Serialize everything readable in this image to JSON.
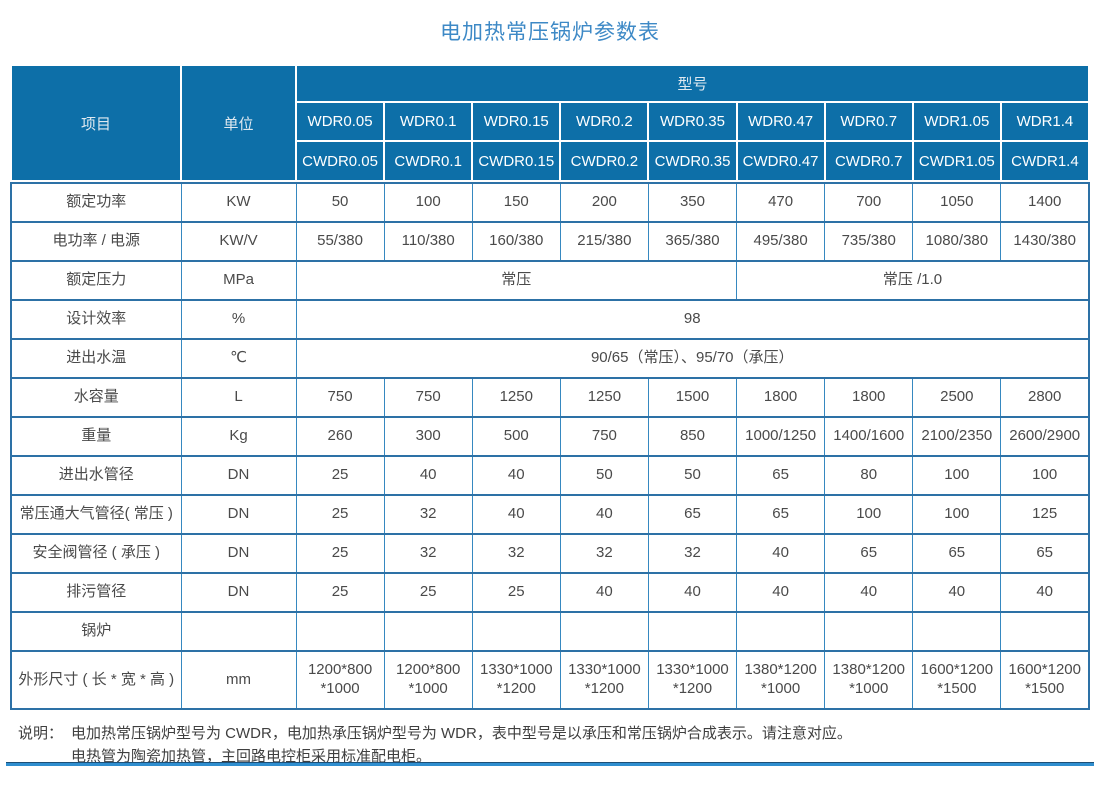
{
  "title": "电加热常压锅炉参数表",
  "colors": {
    "header_bg": "#0d6fa8",
    "title": "#3d89c6",
    "border_h": "#2d71a6",
    "border_v": "#3688c0",
    "body_text": "#4a4a4a"
  },
  "table": {
    "corner_label": "项目",
    "unit_label": "单位",
    "model_group_label": "型号",
    "model_rows": [
      [
        "WDR0.05",
        "WDR0.1",
        "WDR0.15",
        "WDR0.2",
        "WDR0.35",
        "WDR0.47",
        "WDR0.7",
        "WDR1.05",
        "WDR1.4"
      ],
      [
        "CWDR0.05",
        "CWDR0.1",
        "CWDR0.15",
        "CWDR0.2",
        "CWDR0.35",
        "CWDR0.47",
        "CWDR0.7",
        "CWDR1.05",
        "CWDR1.4"
      ]
    ],
    "rows": [
      {
        "item": "额定功率",
        "unit": "KW",
        "values": [
          "50",
          "100",
          "150",
          "200",
          "350",
          "470",
          "700",
          "1050",
          "1400"
        ]
      },
      {
        "item": "电功率 / 电源",
        "unit": "KW/V",
        "values": [
          "55/380",
          "110/380",
          "160/380",
          "215/380",
          "365/380",
          "495/380",
          "735/380",
          "1080/380",
          "1430/380"
        ]
      },
      {
        "item": "额定压力",
        "unit": "MPa",
        "spans": [
          {
            "text": "常压",
            "cols": 5
          },
          {
            "text": "常压 /1.0",
            "cols": 4
          }
        ]
      },
      {
        "item": "设计效率",
        "unit": "%",
        "spans": [
          {
            "text": "98",
            "cols": 9
          }
        ]
      },
      {
        "item": "进出水温",
        "unit": "℃",
        "spans": [
          {
            "text": "90/65（常压）、95/70（承压）",
            "cols": 9
          }
        ]
      },
      {
        "item": "水容量",
        "unit": "L",
        "values": [
          "750",
          "750",
          "1250",
          "1250",
          "1500",
          "1800",
          "1800",
          "2500",
          "2800"
        ]
      },
      {
        "item": "重量",
        "unit": "Kg",
        "values": [
          "260",
          "300",
          "500",
          "750",
          "850",
          "1000/1250",
          "1400/1600",
          "2100/2350",
          "2600/2900"
        ]
      },
      {
        "item": "进出水管径",
        "unit": "DN",
        "values": [
          "25",
          "40",
          "40",
          "50",
          "50",
          "65",
          "80",
          "100",
          "100"
        ]
      },
      {
        "item": "常压通大气管径( 常压 )",
        "unit": "DN",
        "values": [
          "25",
          "32",
          "40",
          "40",
          "65",
          "65",
          "100",
          "100",
          "125"
        ]
      },
      {
        "item": "安全阀管径 ( 承压 )",
        "unit": "DN",
        "values": [
          "25",
          "32",
          "32",
          "32",
          "32",
          "40",
          "65",
          "65",
          "65"
        ]
      },
      {
        "item": "排污管径",
        "unit": "DN",
        "values": [
          "25",
          "25",
          "25",
          "40",
          "40",
          "40",
          "40",
          "40",
          "40"
        ]
      },
      {
        "item": "锅炉",
        "unit": "",
        "values": [
          "",
          "",
          "",
          "",
          "",
          "",
          "",
          "",
          ""
        ]
      },
      {
        "item": "外形尺寸 ( 长 * 宽 * 高 )",
        "unit": "mm",
        "tall": true,
        "values": [
          "1200*800\n*1000",
          "1200*800\n*1000",
          "1330*1000\n*1200",
          "1330*1000\n*1200",
          "1330*1000\n*1200",
          "1380*1200\n*1000",
          "1380*1200\n*1000",
          "1600*1200\n*1500",
          "1600*1200\n*1500"
        ]
      }
    ]
  },
  "note": {
    "label": "说明：",
    "lines": [
      "电加热常压锅炉型号为 CWDR，电加热承压锅炉型号为 WDR，表中型号是以承压和常压锅炉合成表示。请注意对应。",
      "电热管为陶瓷加热管，主回路电控柜采用标准配电柜。"
    ]
  }
}
